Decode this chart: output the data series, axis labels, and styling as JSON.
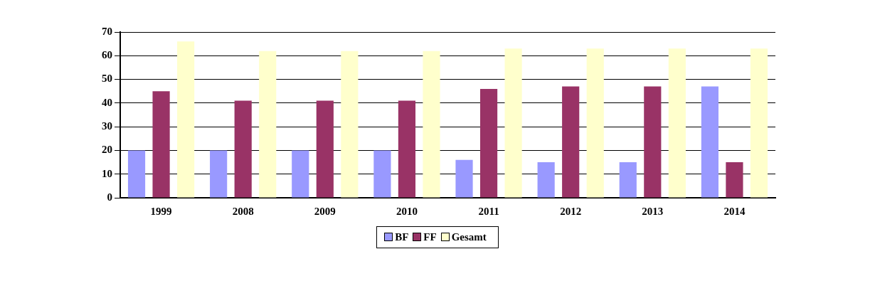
{
  "chart_data": {
    "type": "bar",
    "categories": [
      "1999",
      "2008",
      "2009",
      "2010",
      "2011",
      "2012",
      "2013",
      "2014"
    ],
    "series": [
      {
        "name": "BF",
        "color": "#9999ff",
        "values": [
          20,
          20,
          20,
          20,
          16,
          15,
          15,
          47
        ]
      },
      {
        "name": "FF",
        "color": "#993366",
        "values": [
          45,
          41,
          41,
          41,
          46,
          47,
          47,
          15
        ]
      },
      {
        "name": "Gesamt",
        "color": "#ffffcc",
        "values": [
          66,
          62,
          62,
          62,
          63,
          63,
          63,
          63
        ]
      }
    ],
    "ylim": [
      0,
      70
    ],
    "yticks": [
      0,
      10,
      20,
      30,
      40,
      50,
      60,
      70
    ],
    "grid": "y",
    "legend": "bottom"
  }
}
